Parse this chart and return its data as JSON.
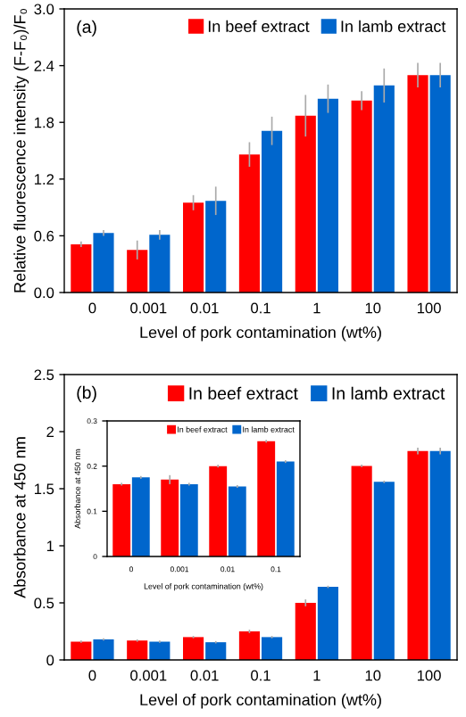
{
  "chart_data": [
    {
      "type": "bar",
      "ylabel": "Relative fluorescence intensity (F-F₀)/F₀",
      "xlabel": "Level of pork contamination (wt%)",
      "annotations": [
        "(a)"
      ],
      "categories": [
        "0",
        "0.001",
        "0.01",
        "0.1",
        "1",
        "10",
        "100"
      ],
      "ylim": [
        0,
        3.0
      ],
      "yticks": [
        "0.0",
        0.6,
        1.2,
        1.8,
        2.4,
        "3.0"
      ],
      "legend": "top right",
      "grid": false,
      "series": [
        {
          "name": "In beef extract",
          "color": "#ff0000",
          "values": [
            0.51,
            0.45,
            0.95,
            1.46,
            1.87,
            2.03,
            2.3
          ],
          "errors": [
            0.03,
            0.1,
            0.08,
            0.13,
            0.22,
            0.1,
            0.13
          ]
        },
        {
          "name": "In lamb extract",
          "color": "#0066cc",
          "values": [
            0.63,
            0.61,
            0.97,
            1.71,
            2.05,
            2.19,
            2.3
          ],
          "errors": [
            0.03,
            0.05,
            0.15,
            0.15,
            0.15,
            0.18,
            0.13
          ]
        }
      ]
    },
    {
      "type": "bar",
      "ylabel": "Absorbance at 450 nm",
      "xlabel": "Level of pork contamination (wt%)",
      "annotations": [
        "(b)"
      ],
      "categories": [
        "0",
        "0.001",
        "0.01",
        "0.1",
        "1",
        "10",
        "100"
      ],
      "ylim": [
        0,
        2.5
      ],
      "yticks": [
        0,
        0.5,
        1,
        1.5,
        2,
        2.5
      ],
      "legend": "top right",
      "grid": false,
      "series": [
        {
          "name": "In beef extract",
          "color": "#ff0000",
          "values": [
            0.16,
            0.17,
            0.2,
            0.25,
            0.5,
            1.7,
            1.83
          ],
          "errors": [
            0.01,
            0.01,
            0.01,
            0.015,
            0.03,
            0.01,
            0.03
          ]
        },
        {
          "name": "In lamb extract",
          "color": "#0066cc",
          "values": [
            0.18,
            0.16,
            0.155,
            0.2,
            0.64,
            1.56,
            1.83
          ],
          "errors": [
            0.01,
            0.01,
            0.01,
            0.01,
            0.01,
            0.01,
            0.03
          ]
        }
      ]
    },
    {
      "type": "bar",
      "ylabel": "Absorbance at 450 nm",
      "xlabel": "Level of pork contamination (wt%)",
      "categories": [
        "0",
        "0.001",
        "0.01",
        "0.1"
      ],
      "ylim": [
        0,
        0.3
      ],
      "yticks": [
        0,
        0.1,
        0.2,
        0.3
      ],
      "legend": "top right",
      "grid": false,
      "series": [
        {
          "name": "In beef extract",
          "color": "#ff0000",
          "values": [
            0.16,
            0.17,
            0.2,
            0.255
          ],
          "errors": [
            0.003,
            0.01,
            0.003,
            0.003
          ]
        },
        {
          "name": "In lamb extract",
          "color": "#0066cc",
          "values": [
            0.175,
            0.16,
            0.155,
            0.21
          ],
          "errors": [
            0.003,
            0.003,
            0.003,
            0.003
          ]
        }
      ]
    }
  ]
}
